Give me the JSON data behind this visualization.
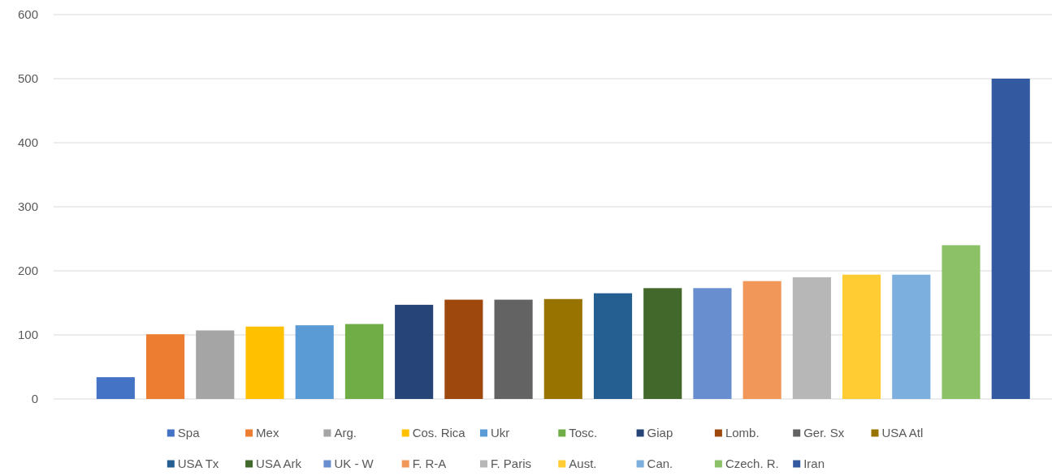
{
  "chart_data": {
    "type": "bar",
    "categories": [
      null
    ],
    "series": [
      {
        "name": "Spa",
        "color": "#4472c4",
        "values": [
          34
        ]
      },
      {
        "name": "Mex",
        "color": "#ed7d31",
        "values": [
          101
        ]
      },
      {
        "name": "Arg.",
        "color": "#a5a5a5",
        "values": [
          107
        ]
      },
      {
        "name": "Cos. Rica",
        "color": "#ffc000",
        "values": [
          113
        ]
      },
      {
        "name": "Ukr",
        "color": "#5b9bd5",
        "values": [
          115
        ]
      },
      {
        "name": "Tosc.",
        "color": "#70ad47",
        "values": [
          117
        ]
      },
      {
        "name": "Giap",
        "color": "#264478",
        "values": [
          147
        ]
      },
      {
        "name": "Lomb.",
        "color": "#9e480e",
        "values": [
          155
        ]
      },
      {
        "name": "Ger. Sx",
        "color": "#636363",
        "values": [
          155
        ]
      },
      {
        "name": "USA Atl",
        "color": "#997300",
        "values": [
          156
        ]
      },
      {
        "name": "USA Tx",
        "color": "#255e91",
        "values": [
          165
        ]
      },
      {
        "name": "USA Ark",
        "color": "#43682b",
        "values": [
          173
        ]
      },
      {
        "name": "UK - W",
        "color": "#698ed0",
        "values": [
          173
        ]
      },
      {
        "name": "F. R-A",
        "color": "#f1975a",
        "values": [
          184
        ]
      },
      {
        "name": "F. Paris",
        "color": "#b7b7b7",
        "values": [
          190
        ]
      },
      {
        "name": "Aust.",
        "color": "#ffcd33",
        "values": [
          194
        ]
      },
      {
        "name": "Can.",
        "color": "#7cafdd",
        "values": [
          194
        ]
      },
      {
        "name": "Czech. R.",
        "color": "#8cc168",
        "values": [
          240
        ]
      },
      {
        "name": "Iran",
        "color": "#335aa1",
        "values": [
          500
        ]
      }
    ],
    "ylim": [
      0,
      600
    ],
    "yticks": [
      0,
      100,
      200,
      300,
      400,
      500,
      600
    ],
    "grid": "y",
    "legend": "bottom"
  }
}
